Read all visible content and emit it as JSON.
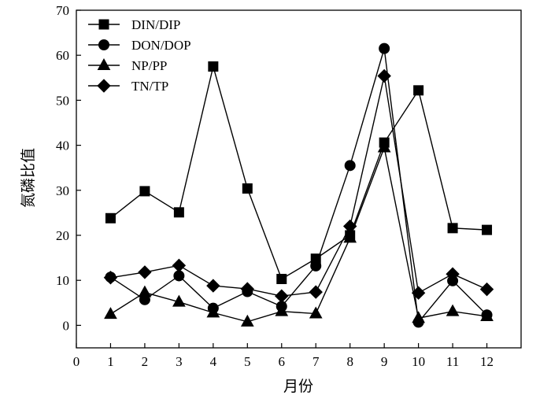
{
  "chart_data": {
    "type": "line",
    "xlabel": "月份",
    "ylabel": "氮磷比值",
    "xlim": [
      0,
      13
    ],
    "ylim": [
      -5,
      70
    ],
    "xticks": [
      0,
      1,
      2,
      3,
      4,
      5,
      6,
      7,
      8,
      9,
      10,
      11,
      12
    ],
    "yticks": [
      0,
      10,
      20,
      30,
      40,
      50,
      60,
      70
    ],
    "x": [
      1,
      2,
      3,
      4,
      5,
      6,
      7,
      8,
      9,
      10,
      11,
      12
    ],
    "legend_position": "top-left",
    "grid": false,
    "series": [
      {
        "name": "DIN/DIP",
        "marker": "square",
        "values": [
          23.8,
          29.8,
          25.1,
          57.5,
          30.4,
          10.3,
          14.8,
          20.0,
          40.6,
          52.2,
          21.6,
          21.2
        ]
      },
      {
        "name": "DON/DOP",
        "marker": "circle",
        "values": [
          10.7,
          5.7,
          11.0,
          3.8,
          7.5,
          4.2,
          13.2,
          35.5,
          61.5,
          0.7,
          9.9,
          2.3
        ]
      },
      {
        "name": "NP/PP",
        "marker": "triangle",
        "values": [
          2.5,
          7.3,
          5.2,
          2.8,
          0.8,
          3.1,
          2.6,
          19.4,
          39.5,
          1.6,
          3.1,
          2.0
        ]
      },
      {
        "name": "TN/TP",
        "marker": "diamond",
        "values": [
          10.6,
          11.8,
          13.3,
          8.8,
          8.1,
          6.5,
          7.4,
          22.0,
          55.4,
          7.2,
          11.4,
          8.0
        ]
      }
    ]
  }
}
